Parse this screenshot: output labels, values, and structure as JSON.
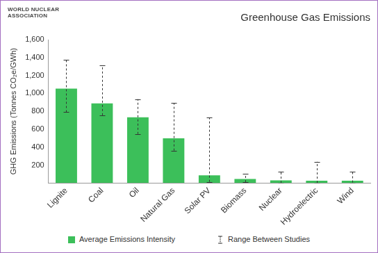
{
  "logo": [
    "WORLD NUCLEAR",
    "ASSOCIATION"
  ],
  "chart_data": {
    "type": "bar",
    "title": "Greenhouse Gas Emissions",
    "y_label": "GHG Emissions (Tonnes CO₂e/GWh)",
    "categories": [
      "Lignite",
      "Coal",
      "Oil",
      "Natural Gas",
      "Solar PV",
      "Biomass",
      "Nuclear",
      "Hydroelectric",
      "Wind"
    ],
    "series": [
      {
        "name": "Average Emissions Intensity",
        "color": "#3cbf5a",
        "values": [
          1054,
          888,
          733,
          499,
          85,
          45,
          29,
          26,
          26
        ],
        "range": {
          "name": "Range Between Studies",
          "low": [
            790,
            756,
            547,
            362,
            13,
            10,
            2,
            2,
            6
          ],
          "high": [
            1372,
            1310,
            935,
            891,
            731,
            101,
            130,
            237,
            124
          ]
        }
      }
    ],
    "ylim": [
      0,
      1600
    ],
    "yticks": [
      200,
      400,
      600,
      800,
      1000,
      1200,
      1400,
      1600
    ],
    "grid": false
  }
}
